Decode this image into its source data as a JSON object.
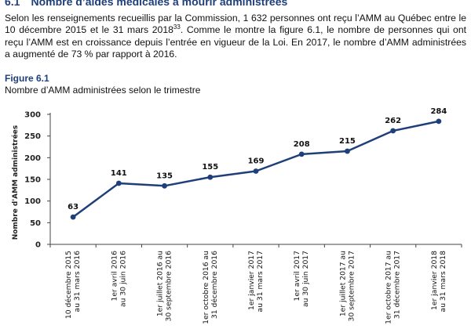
{
  "section": {
    "number": "6.1",
    "title": "Nombre d’aides médicales à mourir administrées"
  },
  "intro": {
    "before_sup": "Selon les renseignements recueillis par la Commission, 1 632 personnes ont reçu l’AMM au Québec entre le 10 décembre 2015 et le 31 mars 2018",
    "footnote": "33",
    "after_sup": ". Comme le montre la figure 6.1, le nombre de personnes qui ont reçu l’AMM est en croissance depuis l’entrée en vigueur de la Loi. En 2017, le nombre d’AMM administrées a augmenté de 73 % par rapport à 2016."
  },
  "figure": {
    "label": "Figure 6.1",
    "caption": "Nombre d’AMM administrées selon le trimestre"
  },
  "chart_data": {
    "type": "line",
    "title": "",
    "xlabel": "",
    "ylabel": "Nombre d'AMM administrées",
    "ylim": [
      0,
      300
    ],
    "yticks": [
      0,
      50,
      100,
      150,
      200,
      250,
      300
    ],
    "grid": false,
    "line_color": "#1f3f7a",
    "categories": [
      [
        "10 décembre 2015",
        "au 31 mars 2016"
      ],
      [
        "1er avril 2016",
        "au 30 juin 2016"
      ],
      [
        "1er juillet 2016 au",
        "30 septembre 2016"
      ],
      [
        "1er octobre 2016 au",
        "31 décembre 2016"
      ],
      [
        "1er janvier 2017",
        "au 31 mars 2017"
      ],
      [
        "1er avril 2017",
        "au 30 juin 2017"
      ],
      [
        "1er juillet 2017 au",
        "30 septembre 2017"
      ],
      [
        "1er octobre 2017 au",
        "31 décembre 2017"
      ],
      [
        "1er janvier 2018",
        "au 31 mars 2018"
      ]
    ],
    "values": [
      63,
      141,
      135,
      155,
      169,
      208,
      215,
      262,
      284
    ]
  }
}
